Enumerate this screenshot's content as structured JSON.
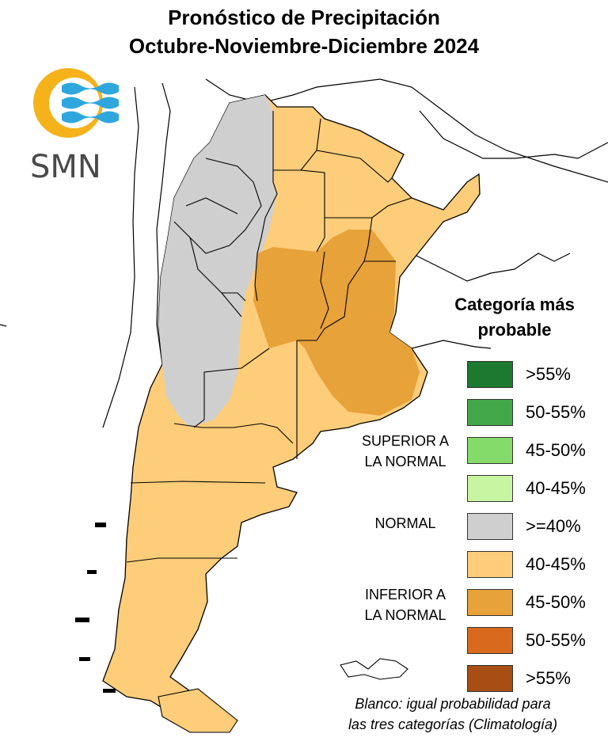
{
  "title": {
    "line1": "Pronóstico de Precipitación",
    "line2": "Octubre-Noviembre-Diciembre 2024"
  },
  "logo": {
    "text": "SMN",
    "colors": {
      "sun": "#F5B21B",
      "waves": "#2FA7DE",
      "text": "#4A4A4A"
    }
  },
  "legend": {
    "title_line1": "Categoría más",
    "title_line2": "probable",
    "items": [
      {
        "label": ">55%",
        "color": "#1B7A30",
        "category": "superior"
      },
      {
        "label": "50-55%",
        "color": "#43A84A",
        "category": "superior"
      },
      {
        "label": "45-50%",
        "color": "#85DB6A",
        "category": "superior"
      },
      {
        "label": "40-45%",
        "color": "#C8F5A2",
        "category": "superior"
      },
      {
        "label": ">=40%",
        "color": "#CFCFCF",
        "category": "normal"
      },
      {
        "label": "40-45%",
        "color": "#FDCD7A",
        "category": "inferior"
      },
      {
        "label": "45-50%",
        "color": "#E8A23A",
        "category": "inferior"
      },
      {
        "label": "50-55%",
        "color": "#D9691C",
        "category": "inferior"
      },
      {
        "label": ">55%",
        "color": "#A64E14",
        "category": "inferior"
      }
    ],
    "categories": {
      "superior_line1": "SUPERIOR A",
      "superior_line2": "LA NORMAL",
      "normal": "NORMAL",
      "inferior_line1": "INFERIOR A",
      "inferior_line2": "LA NORMAL"
    }
  },
  "footer": {
    "line1": "Blanco: igual probabilidad para",
    "line2": "las tres categorías (Climatología)"
  },
  "map_colors": {
    "normal": "#CFCFCF",
    "inferior_40_45": "#FDCD7A",
    "inferior_45_50": "#E8A23A",
    "border": "#000000",
    "white": "#FFFFFF"
  }
}
